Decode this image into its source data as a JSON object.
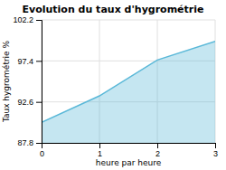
{
  "chart_data": {
    "type": "area",
    "title": "Evolution du taux d'hygrométrie",
    "xlabel": "heure par heure",
    "ylabel": "Taux hygrométrie %",
    "x": [
      0,
      1,
      2,
      3
    ],
    "values": [
      90.2,
      93.3,
      97.5,
      99.7
    ],
    "color": "#5ab8d8",
    "xlim": [
      0,
      3
    ],
    "ylim": [
      87.8,
      102.2
    ],
    "xticks": [
      0,
      1,
      2,
      3
    ],
    "yticks": [
      87.8,
      92.6,
      97.4,
      102.2
    ],
    "grid": true
  }
}
